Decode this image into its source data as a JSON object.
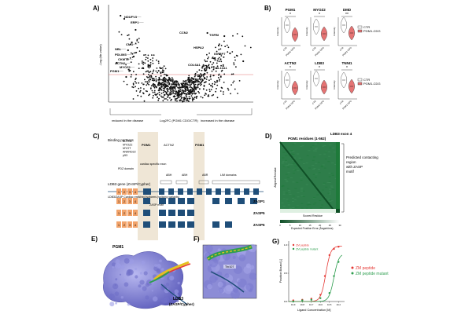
{
  "panels": {
    "A": {
      "letter": "A)",
      "ylabel": "-Log (fdr-value)",
      "xlabel": "Log2FC (PGM1 CDG/CTR)",
      "left_note": "reduced in the disease",
      "right_note": "increased in the disease",
      "genes_left": [
        "NDUFV3",
        "ERP1",
        "CMO",
        "NBL",
        "PDLIM3",
        "CKMT2",
        "ACTN2",
        "MYOZ2",
        "PGM1"
      ],
      "genes_right": [
        "CCN2",
        "TGFBI",
        "HSPA2",
        "IGFBP7",
        "COL6A1",
        "COL11A1"
      ]
    },
    "B": {
      "letter": "B)",
      "plots": [
        {
          "title": "PGM1",
          "sig": "*",
          "ylabel": "Intensity"
        },
        {
          "title": "MYOZ2",
          "sig": "*",
          "ylabel": "Intensity"
        },
        {
          "title": "DMD",
          "sig": "**",
          "ylabel": "Intensity"
        },
        {
          "title": "ACTN2",
          "sig": "*",
          "ylabel": "Intensity"
        },
        {
          "title": "LDB3",
          "sig": "*",
          "ylabel": "Intensity"
        },
        {
          "title": "TNNI1",
          "sig": "*",
          "ylabel": "Intensity"
        }
      ],
      "xticks": [
        "CTR",
        "PGM1-CDG"
      ],
      "legend": [
        "CTR",
        "PGM1-CDG"
      ]
    },
    "C": {
      "letter": "C)",
      "binding_header": "Binding partners",
      "partners_col1": [
        "ACTN2",
        "MYOZ2",
        "MYOT",
        "ANKRD22",
        "p53"
      ],
      "pgm1_label": "PGM1",
      "actn2_label": "ACTN2",
      "pgm1_label_2": "PGM1",
      "pdz": "PDZ domain",
      "cardiac": "cardiac specific exon",
      "abh1": "ABH",
      "abh2": "ABH",
      "abr": "ABR",
      "lim": "LIM domains",
      "gene_name": "LDB3 gene (ZASP/Cypher)",
      "isoforms_desc": "LDB3/ZASP Cardiac enriched isoforms (splicing variants)",
      "motif": "ZASP motif",
      "iso_labels": [
        "ZASP1",
        "ZASP5",
        "ZASP6"
      ],
      "exon_numbers": [
        "1",
        "2",
        "3",
        "4"
      ]
    },
    "D": {
      "letter": "D)",
      "title": "PGM1 residues (1-562)",
      "ldb3": "LDB3 exon 4",
      "predicted": "Predicted contacting region with ZASP motif",
      "ylabel": "Aligned Residue",
      "xlabel": "Scored Residue",
      "colorbar_label": "Expected Position Error (Ångströms)",
      "colorbar_ticks": [
        "0",
        "5",
        "10",
        "15",
        "20",
        "25",
        "30"
      ]
    },
    "E": {
      "letter": "E)",
      "pgm1": "PGM1",
      "ldb3": "LDB3",
      "ldb3_sub": "(ZASP/Cypher)"
    },
    "F": {
      "letter": "F)",
      "residue": "Thr107"
    },
    "G": {
      "letter": "G)",
      "ylabel": "Fraction Bound [-]",
      "xlabel": "Ligand Concentration [M]",
      "legend_inner": [
        "ZM peptide",
        "ZM peptide mutant"
      ],
      "legend_outer": [
        "ZM peptide",
        "ZM peptide mutant"
      ],
      "yticks": [
        "0.0",
        "0.5",
        "1.0"
      ],
      "xticks": [
        "10-9",
        "10-8",
        "10-7",
        "10-6",
        "10-5",
        "10-4"
      ]
    }
  },
  "colors": {
    "ctr": "#ffffff",
    "cdg": "#e57373",
    "dark_blue": "#1f4e79",
    "pdz_orange": "#f2a36a",
    "beige": "#e8dcc4",
    "green_map": "#1e7a3a",
    "red_curve": "#e53935",
    "green_curve": "#2e9e4f"
  },
  "chart_data": [
    {
      "type": "scatter",
      "xlabel": "Log2FC (PGM1 CDG/CTR)",
      "ylabel": "-Log (fdr-value)",
      "points": [
        [
          -3.2,
          5.5
        ],
        [
          -3.0,
          5.3
        ],
        [
          -2.4,
          4.6
        ],
        [
          -2.6,
          3.8
        ],
        [
          -2.8,
          3.3
        ],
        [
          -2.5,
          2.9
        ],
        [
          -3.4,
          2.5
        ],
        [
          -2.7,
          2.0
        ],
        [
          -2.9,
          1.6
        ],
        [
          1.4,
          4.4
        ],
        [
          2.3,
          4.2
        ],
        [
          2.0,
          3.6
        ],
        [
          2.6,
          3.1
        ],
        [
          1.8,
          2.8
        ],
        [
          3.3,
          2.6
        ]
      ]
    },
    {
      "type": "line",
      "xlabel": "Ligand Concentration [M]",
      "ylabel": "Fraction Bound [-]",
      "series": [
        {
          "name": "ZM peptide",
          "x": [
            -9,
            -8,
            -7,
            -6,
            -5.5,
            -5,
            -4.5,
            -4
          ],
          "values": [
            0.02,
            0.03,
            0.05,
            0.12,
            0.45,
            0.82,
            0.93,
            0.97
          ]
        },
        {
          "name": "ZM peptide mutant",
          "x": [
            -9,
            -8,
            -7,
            -6,
            -5,
            -4.5,
            -4
          ],
          "values": [
            0.0,
            0.02,
            0.03,
            0.06,
            0.15,
            0.45,
            0.7
          ]
        }
      ]
    }
  ]
}
